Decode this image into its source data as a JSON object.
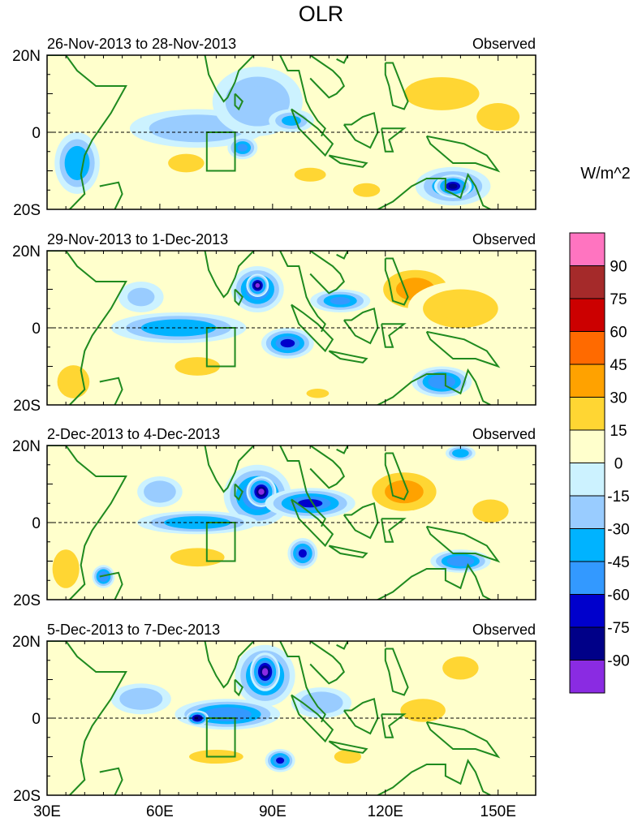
{
  "chart_data": {
    "type": "heatmap",
    "title": "OLR",
    "units_label": "W/m^2",
    "x_ticks": [
      "30E",
      "60E",
      "90E",
      "120E",
      "150E"
    ],
    "x_tick_values": [
      30,
      60,
      90,
      120,
      150
    ],
    "x_range": [
      30,
      160
    ],
    "y_ticks": [
      "20N",
      "0",
      "20S"
    ],
    "y_tick_values": [
      20,
      0,
      -20
    ],
    "y_range": [
      -20,
      20
    ],
    "colorbar": {
      "levels": [
        "90",
        "75",
        "60",
        "45",
        "30",
        "15",
        "0",
        "-15",
        "-30",
        "-45",
        "-60",
        "-75",
        "-90"
      ],
      "colors": [
        "#ff74c0",
        "#a52a2a",
        "#cc0000",
        "#ff6a00",
        "#ffa200",
        "#ffd633",
        "#ffffcc",
        "#ccf2ff",
        "#99ccff",
        "#00b3ff",
        "#3399ff",
        "#0000cc",
        "#000088",
        "#8a2be2"
      ]
    },
    "panels": [
      {
        "date_range": "26-Nov-2013 to 28-Nov-2013",
        "label": "Observed",
        "features": [
          {
            "lon": 135,
            "lat": 10,
            "rx": 14,
            "ry": 6,
            "value": 25
          },
          {
            "lon": 150,
            "lat": 4,
            "rx": 8,
            "ry": 5,
            "value": 30
          },
          {
            "lon": 67,
            "lat": -8,
            "rx": 8,
            "ry": 4,
            "value": 18
          },
          {
            "lon": 100,
            "lat": -11,
            "rx": 7,
            "ry": 3,
            "value": 18
          },
          {
            "lon": 38,
            "lat": 10,
            "rx": 8,
            "ry": 5,
            "value": 15
          },
          {
            "lon": 85,
            "lat": -13,
            "rx": 8,
            "ry": 4,
            "value": 15
          },
          {
            "lon": 115,
            "lat": -15,
            "rx": 6,
            "ry": 3,
            "value": 18
          },
          {
            "lon": 70,
            "lat": 1,
            "rx": 18,
            "ry": 5,
            "value": -25
          },
          {
            "lon": 88,
            "lat": 11,
            "rx": 5,
            "ry": 5,
            "value": -55
          },
          {
            "lon": 86,
            "lat": 8,
            "rx": 12,
            "ry": 9,
            "value": -25
          },
          {
            "lon": 38,
            "lat": -8,
            "rx": 6,
            "ry": 8,
            "value": -40
          },
          {
            "lon": 138,
            "lat": -14,
            "rx": 10,
            "ry": 5,
            "value": -50
          },
          {
            "lon": 138,
            "lat": -14,
            "rx": 5,
            "ry": 3,
            "value": -80
          },
          {
            "lon": 82,
            "lat": -4,
            "rx": 4,
            "ry": 3,
            "value": -45
          },
          {
            "lon": 95,
            "lat": 3,
            "rx": 6,
            "ry": 3,
            "value": -30
          }
        ]
      },
      {
        "date_range": "29-Nov-2013 to 1-Dec-2013",
        "label": "Observed",
        "features": [
          {
            "lon": 128,
            "lat": 10,
            "rx": 12,
            "ry": 7,
            "value": 35
          },
          {
            "lon": 140,
            "lat": 5,
            "rx": 14,
            "ry": 7,
            "value": 25
          },
          {
            "lon": 70,
            "lat": -10,
            "rx": 10,
            "ry": 4,
            "value": 18
          },
          {
            "lon": 37,
            "lat": -14,
            "rx": 6,
            "ry": 6,
            "value": 30
          },
          {
            "lon": 102,
            "lat": -17,
            "rx": 5,
            "ry": 2,
            "value": 18
          },
          {
            "lon": 86,
            "lat": 10,
            "rx": 7,
            "ry": 6,
            "value": -65
          },
          {
            "lon": 65,
            "lat": 0,
            "rx": 18,
            "ry": 4,
            "value": -40
          },
          {
            "lon": 94,
            "lat": -4,
            "rx": 7,
            "ry": 4,
            "value": -60
          },
          {
            "lon": 108,
            "lat": 7,
            "rx": 8,
            "ry": 3,
            "value": -50
          },
          {
            "lon": 86,
            "lat": 11,
            "rx": 3,
            "ry": 3,
            "value": -90
          },
          {
            "lon": 135,
            "lat": -14,
            "rx": 8,
            "ry": 4,
            "value": -55
          },
          {
            "lon": 55,
            "lat": 8,
            "rx": 6,
            "ry": 4,
            "value": -20
          }
        ]
      },
      {
        "date_range": "2-Dec-2013 to 4-Dec-2013",
        "label": "Observed",
        "features": [
          {
            "lon": 125,
            "lat": 8,
            "rx": 12,
            "ry": 7,
            "value": 35
          },
          {
            "lon": 148,
            "lat": 3,
            "rx": 8,
            "ry": 5,
            "value": 20
          },
          {
            "lon": 70,
            "lat": -9,
            "rx": 12,
            "ry": 4,
            "value": 18
          },
          {
            "lon": 35,
            "lat": -12,
            "rx": 5,
            "ry": 7,
            "value": 30
          },
          {
            "lon": 86,
            "lat": 7,
            "rx": 9,
            "ry": 8,
            "value": -55
          },
          {
            "lon": 87,
            "lat": 8,
            "rx": 4,
            "ry": 4,
            "value": -90
          },
          {
            "lon": 100,
            "lat": 5,
            "rx": 12,
            "ry": 4,
            "value": -60
          },
          {
            "lon": 70,
            "lat": 0,
            "rx": 16,
            "ry": 3,
            "value": -40
          },
          {
            "lon": 98,
            "lat": -8,
            "rx": 4,
            "ry": 4,
            "value": -60
          },
          {
            "lon": 140,
            "lat": -10,
            "rx": 8,
            "ry": 3,
            "value": -55
          },
          {
            "lon": 45,
            "lat": -14,
            "rx": 3,
            "ry": 3,
            "value": -55
          },
          {
            "lon": 140,
            "lat": 18,
            "rx": 4,
            "ry": 2,
            "value": -40
          },
          {
            "lon": 60,
            "lat": 8,
            "rx": 6,
            "ry": 4,
            "value": -25
          }
        ]
      },
      {
        "date_range": "5-Dec-2013 to 7-Dec-2013",
        "label": "Observed",
        "features": [
          {
            "lon": 130,
            "lat": 2,
            "rx": 10,
            "ry": 5,
            "value": 18
          },
          {
            "lon": 140,
            "lat": 13,
            "rx": 8,
            "ry": 5,
            "value": 20
          },
          {
            "lon": 75,
            "lat": -10,
            "rx": 12,
            "ry": 3,
            "value": 18
          },
          {
            "lon": 110,
            "lat": -10,
            "rx": 6,
            "ry": 3,
            "value": 18
          },
          {
            "lon": 88,
            "lat": 11,
            "rx": 8,
            "ry": 8,
            "value": -60
          },
          {
            "lon": 88,
            "lat": 12,
            "rx": 4,
            "ry": 5,
            "value": -90
          },
          {
            "lon": 78,
            "lat": 1,
            "rx": 14,
            "ry": 4,
            "value": -55
          },
          {
            "lon": 70,
            "lat": 0,
            "rx": 3,
            "ry": 2,
            "value": -85
          },
          {
            "lon": 92,
            "lat": -11,
            "rx": 4,
            "ry": 3,
            "value": -60
          },
          {
            "lon": 55,
            "lat": 5,
            "rx": 8,
            "ry": 4,
            "value": -25
          },
          {
            "lon": 103,
            "lat": 4,
            "rx": 8,
            "ry": 4,
            "value": -25
          }
        ]
      }
    ]
  }
}
